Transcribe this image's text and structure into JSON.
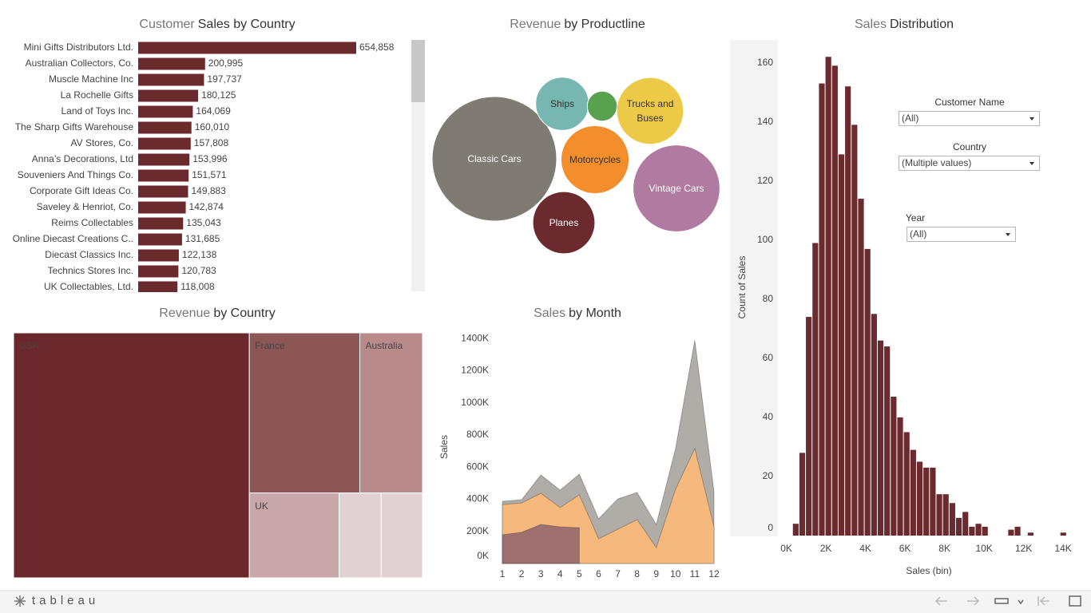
{
  "chart_data": [
    {
      "type": "bar",
      "title": [
        "Customer",
        "Sales by Country"
      ],
      "categories": [
        "Mini Gifts Distributors Ltd.",
        "Australian Collectors, Co.",
        "Muscle Machine Inc",
        "La Rochelle Gifts",
        "Land of Toys Inc.",
        "The Sharp Gifts Warehouse",
        "AV Stores, Co.",
        "Anna’s Decorations, Ltd",
        "Souveniers And Things Co.",
        "Corporate Gift Ideas Co.",
        "Saveley & Henriot, Co.",
        "Reims Collectables",
        "Online Diecast Creations C..",
        "Diecast Classics Inc.",
        "Technics Stores Inc.",
        "UK Collectables, Ltd."
      ],
      "values": [
        654858,
        200995,
        197737,
        180125,
        164069,
        160010,
        157808,
        153996,
        151571,
        149883,
        142874,
        135043,
        131685,
        122138,
        120783,
        118008
      ],
      "value_labels": [
        "654,858",
        "200,995",
        "197,737",
        "180,125",
        "164,069",
        "160,010",
        "157,808",
        "153,996",
        "151,571",
        "149,883",
        "142,874",
        "135,043",
        "131,685",
        "122,138",
        "120,783",
        "118,008"
      ],
      "color": "#6b2a2d"
    },
    {
      "type": "bubble",
      "title": [
        "Revenue",
        "by Productline"
      ],
      "categories": [
        "Classic Cars",
        "Ships",
        null,
        "Trucks and Buses",
        "Motorcycles",
        "Vintage Cars",
        "Planes"
      ],
      "values": [
        3919615,
        714437,
        226243,
        1127790,
        1166388,
        1903151,
        975004
      ],
      "colors": [
        "#7f7a72",
        "#76b7b2",
        "#59a14f",
        "#edc948",
        "#f28e2b",
        "#b07aa1",
        "#6b2a2d"
      ]
    },
    {
      "type": "histogram",
      "title": [
        "Sales",
        "Distribution"
      ],
      "bins": [
        330,
        660,
        990,
        1320,
        1650,
        1980,
        2310,
        2640,
        2970,
        3300,
        3630,
        3960,
        4290,
        4620,
        4950,
        5280,
        5610,
        5940,
        6270,
        6600,
        6930,
        7260,
        7590,
        7920,
        8250,
        8580,
        8910,
        9240,
        9570,
        9900,
        10230,
        10560,
        10890,
        11220,
        11550,
        11880,
        12210,
        12540,
        12870,
        13200,
        13530,
        13860,
        14190
      ],
      "values": [
        4,
        28,
        74,
        99,
        153,
        162,
        159,
        129,
        152,
        139,
        114,
        97,
        75,
        66,
        64,
        47,
        40,
        35,
        29,
        25,
        23,
        23,
        14,
        14,
        11,
        6,
        8,
        3,
        4,
        3,
        0,
        0,
        0,
        2,
        3,
        0,
        1,
        0,
        0,
        0,
        0,
        1
      ],
      "color": "#6b2a2d",
      "xlim": [
        -1800,
        14600
      ],
      "xticks": [
        {
          "value": 0,
          "label": "0K"
        },
        {
          "value": 2000,
          "label": "2K"
        },
        {
          "value": 4000,
          "label": "4K"
        },
        {
          "value": 6000,
          "label": "6K"
        },
        {
          "value": 8000,
          "label": "8K"
        },
        {
          "value": 10000,
          "label": "10K"
        },
        {
          "value": 12000,
          "label": "12K"
        },
        {
          "value": 14000,
          "label": "14K"
        }
      ],
      "ylim": [
        0,
        168
      ],
      "yticks": [
        0,
        20,
        40,
        60,
        80,
        100,
        120,
        140,
        160
      ],
      "xlabel": "Sales (bin)",
      "ylabel": "Count of Sales"
    },
    {
      "type": "treemap",
      "title": [
        "Revenue",
        "by Country"
      ],
      "categories": [
        "USA",
        "France",
        "Australia",
        "UK",
        null,
        null
      ],
      "values": [
        3627982,
        1110916,
        630623,
        478880,
        224078,
        220472
      ],
      "colors": [
        "#6b282c",
        "#8e5555",
        "#b98a8a",
        "#c9a6a8",
        "#e0d2d2",
        "#e0d2d2"
      ]
    },
    {
      "type": "area",
      "title": [
        "Sales",
        "by Month"
      ],
      "x": [
        1,
        2,
        3,
        4,
        5,
        6,
        7,
        8,
        9,
        10,
        11,
        12
      ],
      "series": [
        {
          "color": "#b0aca8",
          "values": [
            387000,
            397000,
            551000,
            457000,
            556000,
            278000,
            402000,
            442000,
            243000,
            715000,
            1390000,
            447000
          ]
        },
        {
          "color": "#f5b87d",
          "values": [
            367000,
            377000,
            437000,
            348000,
            427000,
            154000,
            213000,
            273000,
            99000,
            462000,
            715000,
            228000
          ]
        },
        {
          "color": "#9e7170",
          "values": [
            179000,
            194000,
            243000,
            228000,
            223000,
            null,
            null,
            null,
            null,
            null,
            null,
            null
          ]
        }
      ],
      "xlim": [
        1,
        12
      ],
      "xticks": [
        1,
        2,
        3,
        4,
        5,
        6,
        7,
        8,
        9,
        10,
        11,
        12
      ],
      "ylim": [
        0,
        1470000
      ],
      "yticks": [
        {
          "value": 0,
          "label": "0K"
        },
        {
          "value": 200000,
          "label": "200K"
        },
        {
          "value": 400000,
          "label": "400K"
        },
        {
          "value": 600000,
          "label": "600K"
        },
        {
          "value": 800000,
          "label": "800K"
        },
        {
          "value": 1000000,
          "label": "1000K"
        },
        {
          "value": 1200000,
          "label": "1200K"
        },
        {
          "value": 1400000,
          "label": "1400K"
        }
      ],
      "ylabel": "Sales"
    }
  ],
  "filters": [
    {
      "label": "Customer Name",
      "value": "(All)"
    },
    {
      "label": "Country",
      "value": "(Multiple values)"
    },
    {
      "label": "Year",
      "value": "(All)"
    }
  ],
  "footer": {
    "logo": "tableau"
  }
}
